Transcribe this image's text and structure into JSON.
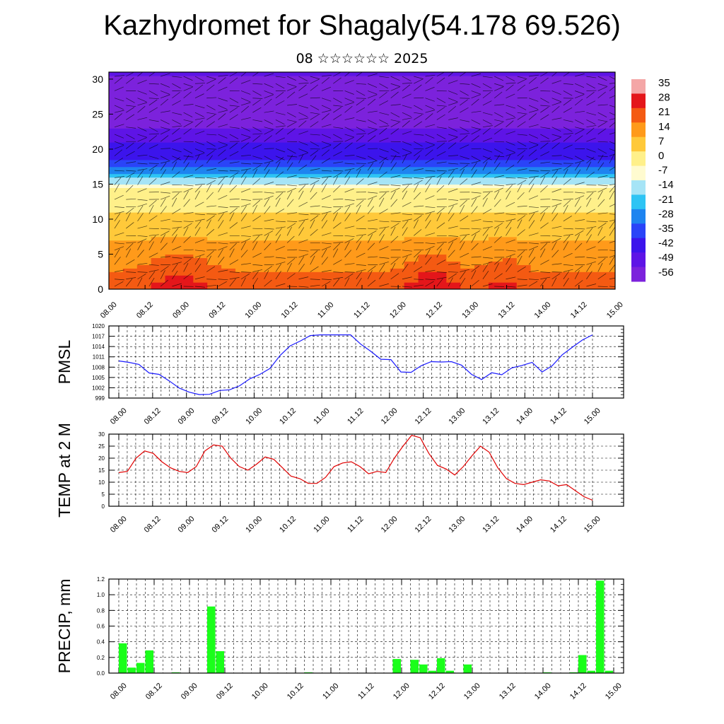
{
  "title": "Kazhydromet for Shagaly(54.178 69.526)",
  "subtitle": "08 ☆☆☆☆☆☆ 2025",
  "chart_data": [
    {
      "type": "heatmap",
      "name": "vertical-cross-section",
      "x_ticks": [
        "08.00",
        "08.12",
        "09.00",
        "09.12",
        "10.00",
        "10.12",
        "11.00",
        "11.12",
        "12.00",
        "12.12",
        "13.00",
        "13.12",
        "14.00",
        "14.12",
        "15.00"
      ],
      "y_ticks": [
        "0",
        "5",
        "10",
        "15",
        "20",
        "25",
        "30"
      ],
      "ylim": [
        0,
        31
      ],
      "colorbar_labels": [
        "35",
        "28",
        "21",
        "14",
        "7",
        "0",
        "-7",
        "-14",
        "-21",
        "-28",
        "-35",
        "-42",
        "-49",
        "-56"
      ],
      "colorbar_colors": [
        "#f4a6a6",
        "#e4161a",
        "#f45a12",
        "#ff9a1a",
        "#ffc93a",
        "#fff08a",
        "#fffbd0",
        "#a6e4f6",
        "#2ec4f4",
        "#1e84f0",
        "#2a44f8",
        "#3c14ec",
        "#5e14e6",
        "#7c22dc"
      ]
    },
    {
      "type": "line",
      "name": "pmsl",
      "ylabel": "PMSL",
      "y_ticks": [
        "999",
        "1002",
        "1005",
        "1008",
        "1011",
        "1014",
        "1017",
        "1020"
      ],
      "ylim": [
        999,
        1020
      ],
      "x_ticks": [
        "08.00",
        "08.12",
        "09.00",
        "09.12",
        "10.00",
        "10.12",
        "11.00",
        "11.12",
        "12.00",
        "12.12",
        "13.00",
        "13.12",
        "14.00",
        "14.12",
        "15.00"
      ],
      "color": "#1a1aff",
      "values": [
        1009.8,
        1009.4,
        1008.8,
        1006.3,
        1005.9,
        1004.0,
        1001.9,
        1000.7,
        1000.0,
        1000.1,
        1001.2,
        1001.4,
        1002.6,
        1004.6,
        1005.9,
        1007.6,
        1011.4,
        1014.2,
        1015.6,
        1017.2,
        1017.4,
        1017.4,
        1017.4,
        1017.4,
        1014.7,
        1012.6,
        1010.3,
        1010.2,
        1006.6,
        1006.5,
        1008.4,
        1009.6,
        1009.5,
        1009.6,
        1008.6,
        1005.9,
        1004.4,
        1006.4,
        1005.8,
        1007.8,
        1008.5,
        1009.4,
        1006.6,
        1008.4,
        1011.6,
        1013.8,
        1015.9,
        1017.4
      ]
    },
    {
      "type": "line",
      "name": "temp-2m",
      "ylabel": "TEMP at 2 M",
      "y_ticks": [
        "0",
        "5",
        "10",
        "15",
        "20",
        "25",
        "30"
      ],
      "ylim": [
        0,
        30
      ],
      "x_ticks": [
        "08.00",
        "08.12",
        "09.00",
        "09.12",
        "10.00",
        "10.12",
        "11.00",
        "11.12",
        "12.00",
        "12.12",
        "13.00",
        "13.12",
        "14.00",
        "14.12",
        "15.00"
      ],
      "color": "#e00000",
      "values": [
        14,
        14.5,
        20,
        23,
        22,
        18.5,
        16,
        14.5,
        14,
        16.5,
        23,
        25.5,
        25,
        20,
        16.5,
        15,
        17.5,
        20.5,
        19.5,
        16,
        12.5,
        11.5,
        9.5,
        9.5,
        12,
        16.5,
        18,
        18.5,
        16.5,
        13.5,
        14.5,
        14,
        20,
        25,
        29.5,
        28.5,
        22,
        17,
        15.5,
        13,
        16.5,
        21,
        25,
        22.5,
        16,
        11.5,
        9.5,
        9,
        10,
        11,
        10.5,
        8.5,
        9,
        6.5,
        4,
        2.5
      ]
    },
    {
      "type": "bar",
      "name": "precipitation",
      "ylabel": "PRECIP, mm",
      "y_ticks": [
        "0.0",
        "0.2",
        "0.4",
        "0.6",
        "0.8",
        "1.0",
        "1.2"
      ],
      "ylim": [
        0,
        1.2
      ],
      "x_ticks": [
        "08.00",
        "08.12",
        "09.00",
        "09.12",
        "10.00",
        "10.12",
        "11.00",
        "11.12",
        "12.00",
        "12.12",
        "13.00",
        "13.12",
        "14.00",
        "14.12",
        "15.00"
      ],
      "color": "#1aff1a",
      "values": [
        0.38,
        0.07,
        0.13,
        0.29,
        0,
        0,
        0.01,
        0,
        0,
        0,
        0.85,
        0.28,
        0,
        0,
        0,
        0,
        0,
        0,
        0,
        0,
        0,
        0.01,
        0,
        0,
        0,
        0,
        0,
        0,
        0,
        0,
        0,
        0.18,
        0,
        0.17,
        0.11,
        0.03,
        0.19,
        0.03,
        0,
        0.11,
        0,
        0,
        0,
        0,
        0,
        0,
        0,
        0,
        0.01,
        0,
        0,
        0.01,
        0.23,
        0.03,
        1.18,
        0.03
      ]
    }
  ]
}
